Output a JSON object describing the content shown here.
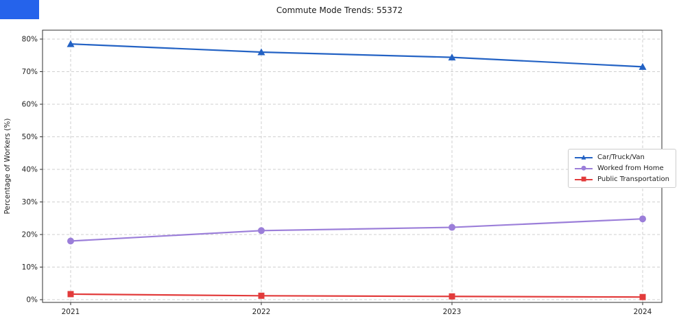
{
  "window": {
    "corner_bar_color": "#2563eb"
  },
  "chart_data": {
    "type": "line",
    "title": "Commute Mode Trends: 55372",
    "xlabel": "",
    "ylabel": "Percentage of Workers (%)",
    "x": [
      2021,
      2022,
      2023,
      2024
    ],
    "x_tick_labels": [
      "2021",
      "2022",
      "2023",
      "2024"
    ],
    "ylim": [
      0,
      80
    ],
    "yticks": [
      0,
      10,
      20,
      30,
      40,
      50,
      60,
      70,
      80
    ],
    "ytick_labels": [
      "0%",
      "10%",
      "20%",
      "30%",
      "40%",
      "50%",
      "60%",
      "70%",
      "80%"
    ],
    "grid": true,
    "grid_style": "dashed",
    "legend_position": "center-right",
    "series": [
      {
        "name": "Car/Truck/Van",
        "color": "#2362c4",
        "marker": "triangle",
        "marker_glyph": "▲",
        "values": [
          78.5,
          76.0,
          74.4,
          71.5
        ]
      },
      {
        "name": "Worked from Home",
        "color": "#9b7ed9",
        "marker": "circle",
        "marker_glyph": "●",
        "values": [
          18.0,
          21.2,
          22.2,
          24.8
        ]
      },
      {
        "name": "Public Transportation",
        "color": "#e23b3b",
        "marker": "square",
        "marker_glyph": "■",
        "values": [
          1.7,
          1.2,
          1.0,
          0.8
        ]
      }
    ]
  }
}
